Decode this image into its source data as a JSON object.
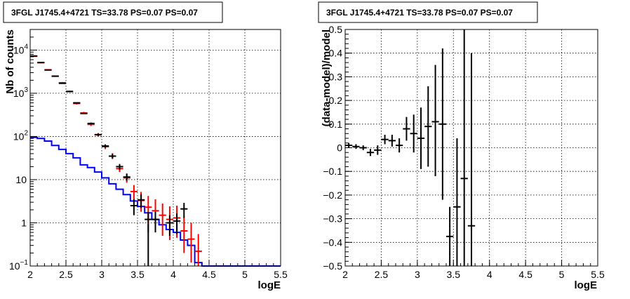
{
  "chart_data": [
    {
      "type": "line",
      "title": "3FGL J1745.4+4721 TS=33.78 PS=0.07 PS=0.07",
      "xlabel": "logE",
      "ylabel": "Nb of counts",
      "xlim": [
        2,
        5.5
      ],
      "ylim": [
        0.1,
        30000
      ],
      "yscale": "log",
      "grid": true,
      "x_ticks": [
        "2",
        "2.5",
        "3",
        "3.5",
        "4",
        "4.5",
        "5",
        "5.5"
      ],
      "y_ticks": [
        {
          "value": 0.1,
          "label": "10",
          "exp": "−1"
        },
        {
          "value": 1,
          "label": "1",
          "exp": ""
        },
        {
          "value": 10,
          "label": "10",
          "exp": ""
        },
        {
          "value": 100,
          "label": "10",
          "exp": "2"
        },
        {
          "value": 1000,
          "label": "10",
          "exp": "3"
        },
        {
          "value": 10000,
          "label": "10",
          "exp": "4"
        }
      ],
      "bin_width": 0.1,
      "series": [
        {
          "color": "#0000ff",
          "style": "step",
          "x": [
            2.05,
            2.15,
            2.25,
            2.35,
            2.45,
            2.55,
            2.65,
            2.75,
            2.85,
            2.95,
            3.05,
            3.15,
            3.25,
            3.35,
            3.45,
            3.55,
            3.65,
            3.75,
            3.85,
            3.95,
            4.05,
            4.15,
            4.25,
            4.35,
            4.45,
            4.55,
            4.65,
            4.75,
            4.85,
            4.95,
            5.05,
            5.15,
            5.25,
            5.35,
            5.45
          ],
          "values": [
            95,
            90,
            78,
            62,
            50,
            40,
            32,
            22,
            19,
            15,
            11,
            8,
            6,
            4.5,
            3.2,
            2.4,
            1.7,
            1.2,
            0.9,
            0.7,
            0.6,
            0.4,
            0.3,
            0.12,
            0.1,
            0.1,
            0.1,
            0.1,
            0.1,
            0.1,
            0.1,
            0.1,
            0.1,
            0.1,
            0.1
          ]
        },
        {
          "color": "#ff0000",
          "style": "errorbar",
          "x": [
            2.05,
            2.15,
            2.25,
            2.35,
            2.45,
            2.55,
            2.65,
            2.75,
            2.85,
            2.95,
            3.05,
            3.15,
            3.25,
            3.35,
            3.45,
            3.55,
            3.65,
            3.75,
            3.85,
            3.95,
            4.05,
            4.15,
            4.25,
            4.35
          ],
          "values": [
            7200,
            5100,
            3500,
            2500,
            1750,
            1100,
            580,
            350,
            190,
            110,
            58,
            35,
            18,
            11,
            5.3,
            3.3,
            2.3,
            1.9,
            1.5,
            1.2,
            1.3,
            0.65,
            0.42,
            0.22
          ],
          "err_low": [
            7000,
            4950,
            3380,
            2410,
            1680,
            1050,
            550,
            330,
            175,
            100,
            51,
            30,
            15,
            8.5,
            3.5,
            1.8,
            1.0,
            0.7,
            0.5,
            0.4,
            0.45,
            0.2,
            0.12,
            0.1
          ],
          "err_high": [
            7400,
            5250,
            3620,
            2590,
            1820,
            1150,
            610,
            370,
            205,
            120,
            66,
            41,
            22,
            14,
            7.5,
            5.2,
            4.2,
            3.5,
            2.8,
            2.4,
            2.5,
            1.4,
            1.0,
            0.55
          ]
        },
        {
          "color": "#000000",
          "style": "errorbar",
          "x": [
            2.05,
            2.15,
            2.25,
            2.35,
            2.45,
            2.55,
            2.65,
            2.75,
            2.85,
            2.95,
            3.05,
            3.15,
            3.25,
            3.35,
            3.45,
            3.55,
            3.65,
            3.75,
            3.95,
            4.05,
            4.15
          ],
          "values": [
            7300,
            5150,
            3450,
            2480,
            1700,
            1100,
            600,
            340,
            200,
            110,
            60,
            35,
            20,
            11.5,
            2.5,
            3.4,
            1.2,
            1.2,
            1.0,
            1.1,
            2.1
          ],
          "err_low": [
            7150,
            5050,
            3380,
            2430,
            1660,
            1070,
            585,
            330,
            190,
            103,
            55,
            31,
            17,
            9.5,
            1.5,
            2.2,
            0.6,
            0.6,
            0.5,
            0.55,
            1.3
          ],
          "err_high": [
            7450,
            5250,
            3520,
            2530,
            1740,
            1130,
            615,
            350,
            210,
            117,
            65,
            39,
            23,
            13.5,
            3.5,
            4.6,
            1.8,
            1.8,
            1.5,
            1.65,
            2.9
          ],
          "marker_only": [
            3.65
          ]
        }
      ]
    },
    {
      "type": "scatter",
      "title": "3FGL J1745.4+4721 TS=33.78 PS=0.07 PS=0.07",
      "xlabel": "logE",
      "ylabel": "(data-model)/model",
      "xlim": [
        2,
        5.5
      ],
      "ylim": [
        -0.5,
        0.5
      ],
      "grid": true,
      "x_ticks": [
        "2",
        "2.5",
        "3",
        "3.5",
        "4",
        "4.5",
        "5",
        "5.5"
      ],
      "y_ticks": [
        "−0.5",
        "−0.4",
        "−0.3",
        "−0.2",
        "−0.1",
        "0",
        "0.1",
        "0.2",
        "0.3",
        "0.4",
        "0.5"
      ],
      "bin_width": 0.1,
      "series": [
        {
          "color": "#000000",
          "style": "errorbar",
          "x": [
            2.05,
            2.15,
            2.25,
            2.35,
            2.45,
            2.55,
            2.65,
            2.75,
            2.85,
            2.95,
            3.05,
            3.15,
            3.25,
            3.35,
            3.45,
            3.55,
            3.65,
            3.75
          ],
          "values": [
            0.01,
            0.005,
            0.0,
            -0.02,
            -0.01,
            0.035,
            0.03,
            0.01,
            0.08,
            0.06,
            0.04,
            0.09,
            0.11,
            0.1,
            -0.375,
            -0.25,
            -0.13,
            -0.33
          ],
          "err_low": [
            0.0,
            -0.005,
            -0.01,
            -0.035,
            -0.03,
            0.015,
            0.005,
            -0.02,
            0.03,
            -0.02,
            -0.09,
            -0.08,
            -0.12,
            -0.22,
            -0.5,
            -0.5,
            -0.5,
            -0.5
          ],
          "err_high": [
            0.02,
            0.015,
            0.01,
            -0.005,
            0.01,
            0.055,
            0.055,
            0.04,
            0.13,
            0.14,
            0.17,
            0.26,
            0.35,
            0.42,
            -0.25,
            0.04,
            0.5,
            0.4
          ]
        }
      ]
    }
  ]
}
